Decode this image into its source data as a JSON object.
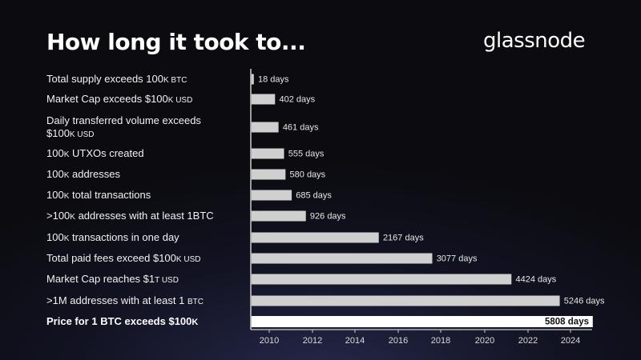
{
  "header": {
    "title": "How long it took to...",
    "brand": "glassnode"
  },
  "chart_data": {
    "type": "bar",
    "orientation": "horizontal",
    "title": "How long it took to...",
    "unit": "days",
    "categories": [
      "Total supply exceeds 100K BTC",
      "Market Cap exceeds $100K USD",
      "Daily transferred volume exceeds $100K USD",
      "100K UTXOs created",
      "100K addresses",
      "100K total transactions",
      ">100K addresses with at least 1BTC",
      "100K transactions in one day",
      "Total paid fees exceed $100K USD",
      "Market Cap reaches $1T USD",
      ">1M addresses with at least 1 BTC",
      "Price for 1 BTC exceeds $100K"
    ],
    "values": [
      18,
      402,
      461,
      555,
      580,
      685,
      926,
      2167,
      3077,
      4424,
      5246,
      5808
    ],
    "value_labels": [
      "18 days",
      "402 days",
      "461 days",
      "555 days",
      "580 days",
      "685 days",
      "926 days",
      "2167 days",
      "3077 days",
      "4424 days",
      "5246 days",
      "5808 days"
    ],
    "highlight_index": 11,
    "x_axis": {
      "ticks": [
        "2010",
        "2012",
        "2014",
        "2016",
        "2018",
        "2020",
        "2022",
        "2024"
      ]
    },
    "xlim": [
      0,
      5808
    ],
    "grid": false,
    "colors": {
      "bar": "#cfcfcf",
      "highlight_bar": "#ffffff",
      "axis": "#cccccc"
    }
  },
  "labels": [
    {
      "text": "Total supply exceeds 100",
      "sc": "K BTC",
      "tail": ""
    },
    {
      "text": "Market Cap exceeds $100",
      "sc": "K USD",
      "tail": ""
    },
    {
      "text": "Daily transferred volume exceeds $100",
      "sc": "K USD",
      "tail": ""
    },
    {
      "text": "100",
      "sc": "K",
      "tail": " UTXOs created"
    },
    {
      "text": "100",
      "sc": "K",
      "tail": " addresses"
    },
    {
      "text": "100",
      "sc": "K",
      "tail": " total transactions"
    },
    {
      "text": ">100",
      "sc": "K",
      "tail": " addresses with at least 1BTC"
    },
    {
      "text": "100",
      "sc": "K",
      "tail": " transactions in one day"
    },
    {
      "text": "Total paid fees exceed $100",
      "sc": "K USD",
      "tail": ""
    },
    {
      "text": "Market Cap reaches $1",
      "sc": "T USD",
      "tail": ""
    },
    {
      "text": ">1M addresses with at least 1 ",
      "sc": "BTC",
      "tail": ""
    },
    {
      "text": "Price for 1 BTC exceeds $100",
      "sc": "K",
      "tail": ""
    }
  ]
}
